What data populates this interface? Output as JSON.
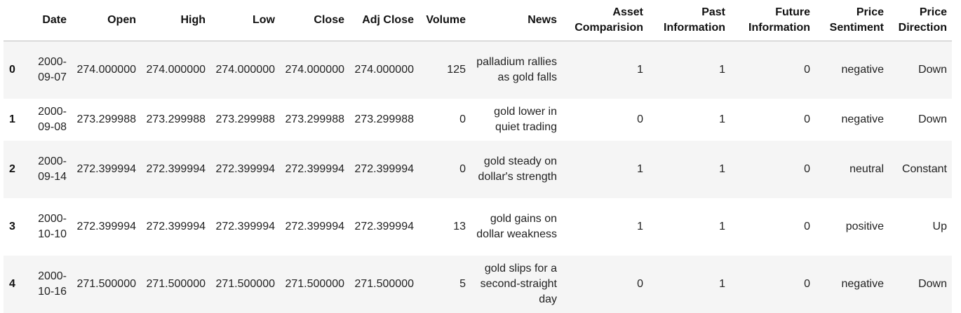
{
  "table": {
    "columns": [
      "",
      "Date",
      "Open",
      "High",
      "Low",
      "Close",
      "Adj Close",
      "Volume",
      "News",
      "Asset Comparision",
      "Past Information",
      "Future Information",
      "Price Sentiment",
      "Price Direction"
    ],
    "rows": [
      {
        "index": "0",
        "Date": "2000-09-07",
        "Open": "274.000000",
        "High": "274.000000",
        "Low": "274.000000",
        "Close": "274.000000",
        "Adj Close": "274.000000",
        "Volume": "125",
        "News": "palladium rallies as gold falls",
        "Asset Comparision": "1",
        "Past Information": "1",
        "Future Information": "0",
        "Price Sentiment": "negative",
        "Price Direction": "Down"
      },
      {
        "index": "1",
        "Date": "2000-09-08",
        "Open": "273.299988",
        "High": "273.299988",
        "Low": "273.299988",
        "Close": "273.299988",
        "Adj Close": "273.299988",
        "Volume": "0",
        "News": "gold lower in quiet trading",
        "Asset Comparision": "0",
        "Past Information": "1",
        "Future Information": "0",
        "Price Sentiment": "negative",
        "Price Direction": "Down"
      },
      {
        "index": "2",
        "Date": "2000-09-14",
        "Open": "272.399994",
        "High": "272.399994",
        "Low": "272.399994",
        "Close": "272.399994",
        "Adj Close": "272.399994",
        "Volume": "0",
        "News": "gold steady on dollar's strength",
        "Asset Comparision": "1",
        "Past Information": "1",
        "Future Information": "0",
        "Price Sentiment": "neutral",
        "Price Direction": "Constant"
      },
      {
        "index": "3",
        "Date": "2000-10-10",
        "Open": "272.399994",
        "High": "272.399994",
        "Low": "272.399994",
        "Close": "272.399994",
        "Adj Close": "272.399994",
        "Volume": "13",
        "News": "gold gains on dollar weakness",
        "Asset Comparision": "1",
        "Past Information": "1",
        "Future Information": "0",
        "Price Sentiment": "positive",
        "Price Direction": "Up"
      },
      {
        "index": "4",
        "Date": "2000-10-16",
        "Open": "271.500000",
        "High": "271.500000",
        "Low": "271.500000",
        "Close": "271.500000",
        "Adj Close": "271.500000",
        "Volume": "5",
        "News": "gold slips for a second-straight day",
        "Asset Comparision": "0",
        "Past Information": "1",
        "Future Information": "0",
        "Price Sentiment": "negative",
        "Price Direction": "Down"
      }
    ]
  }
}
